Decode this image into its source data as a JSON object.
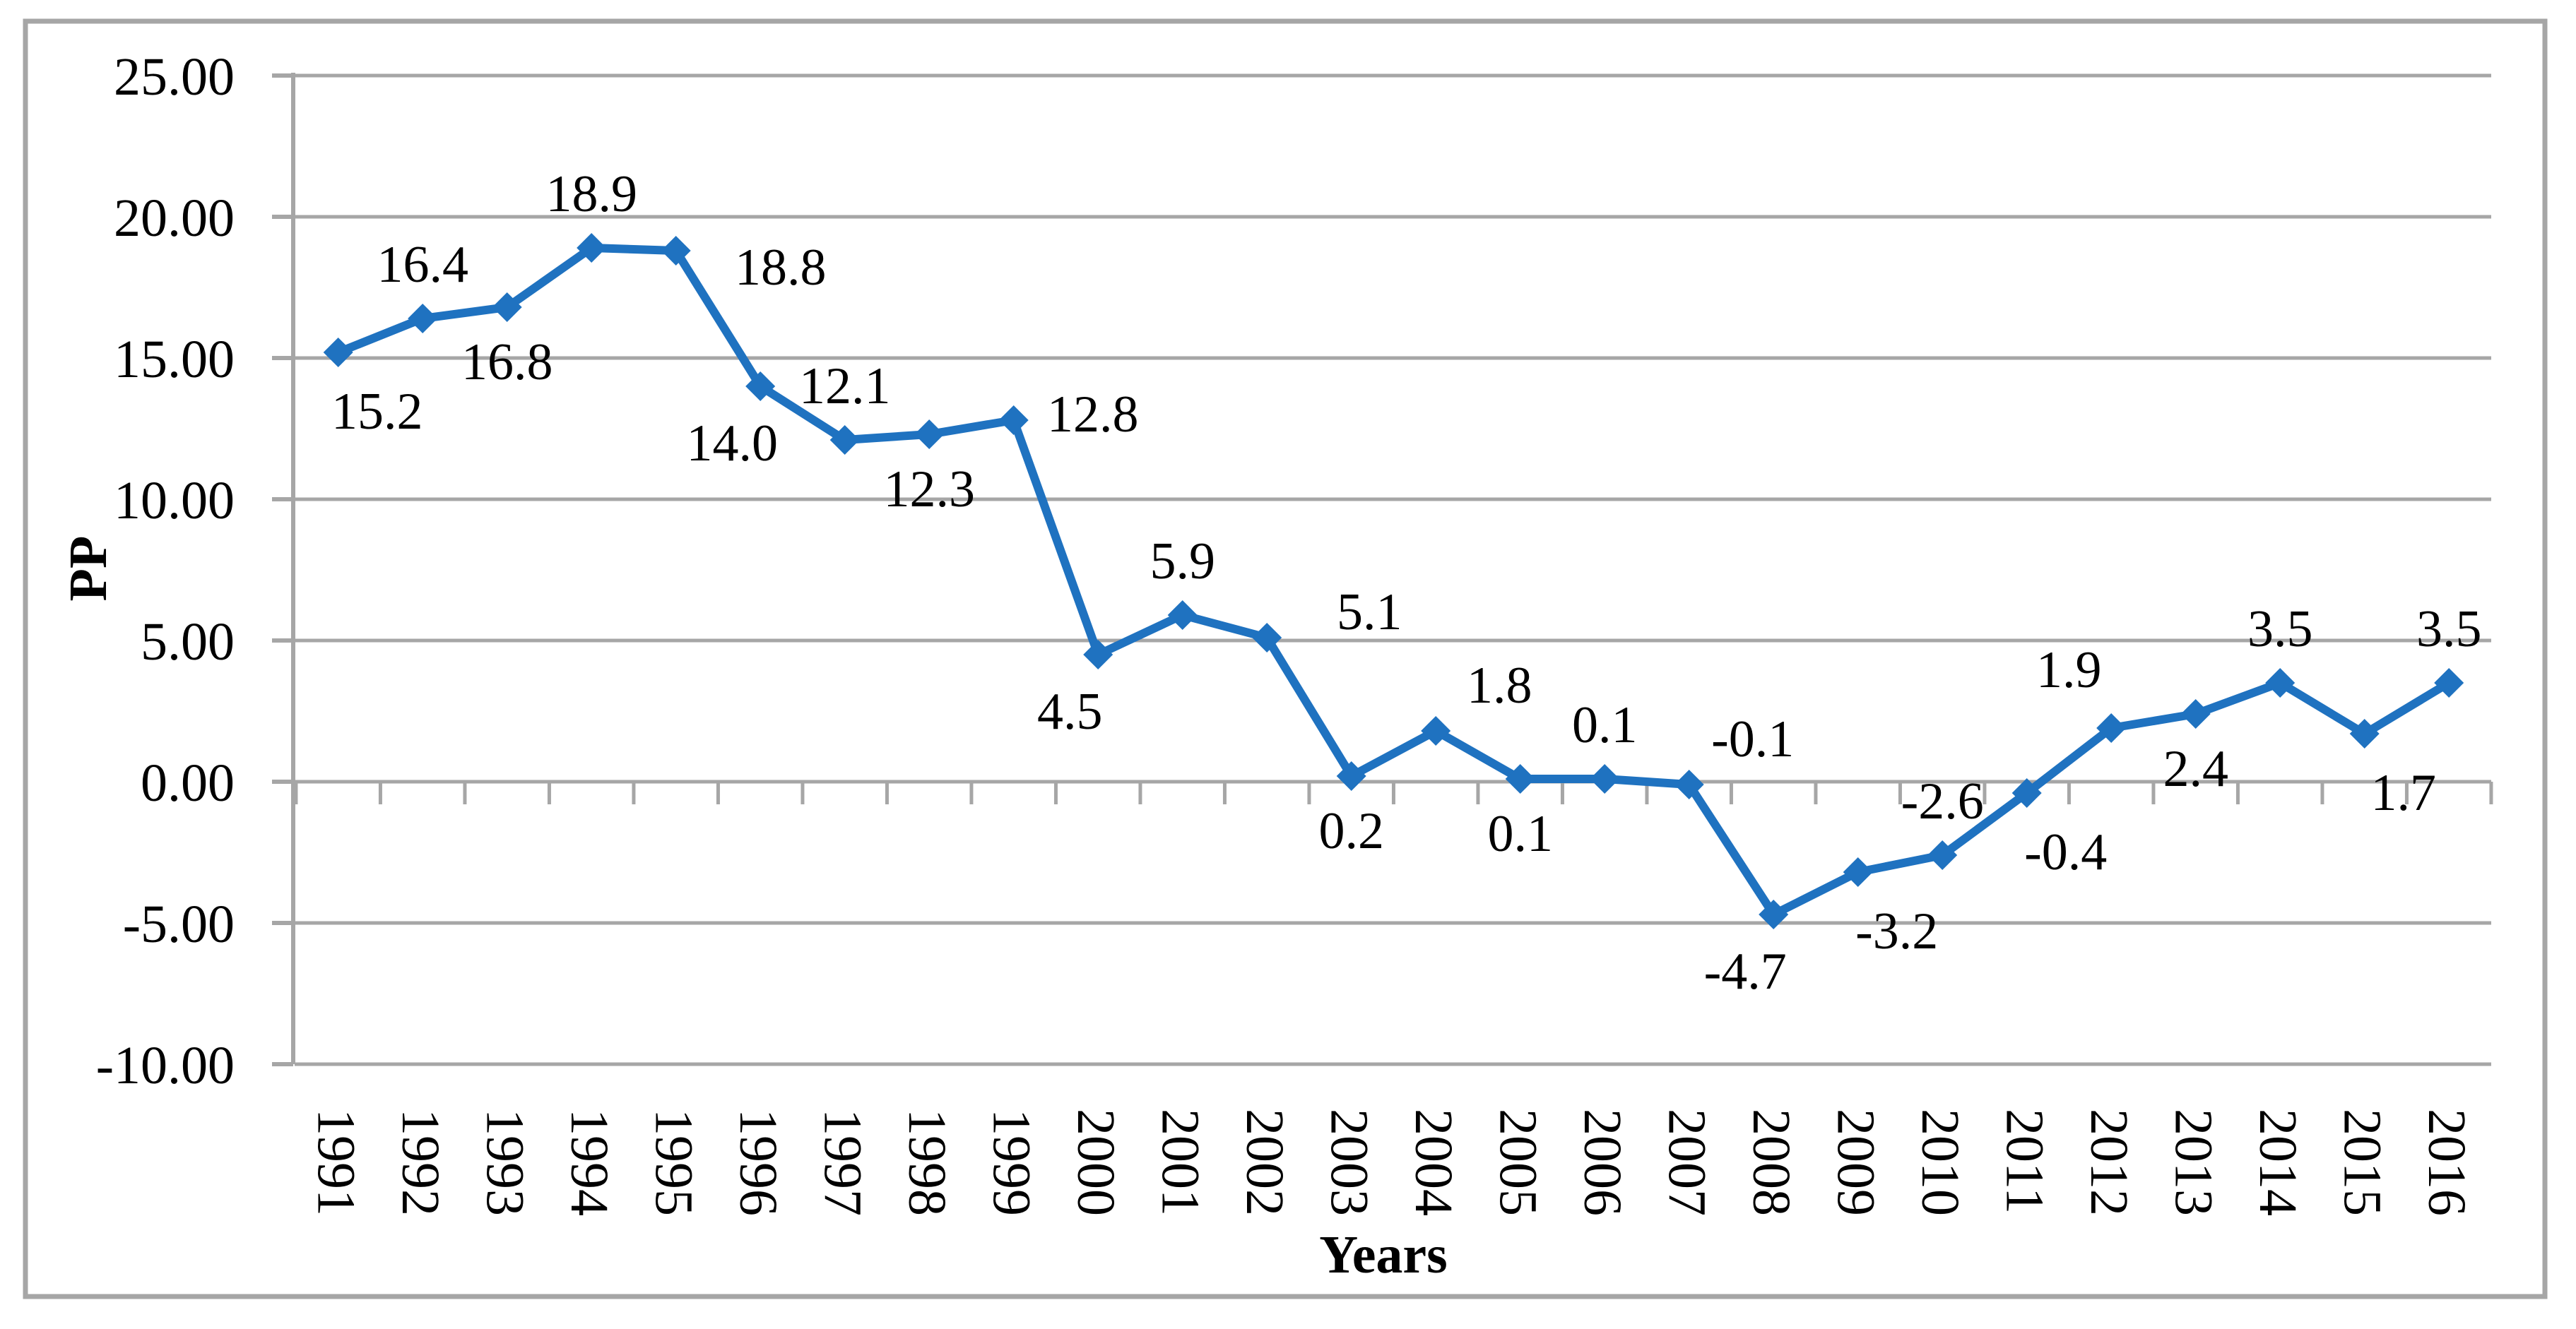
{
  "chart_data": {
    "type": "line",
    "title": "",
    "xlabel": "Years",
    "ylabel": "PP",
    "ylim": [
      -10,
      25
    ],
    "ytick_step": 5,
    "ytick_labels": [
      "25.00",
      "20.00",
      "15.00",
      "10.00",
      "5.00",
      "0.00",
      "-5.00",
      "-10.00"
    ],
    "grid": true,
    "legend_position": "none",
    "line_color": "#1F72C0",
    "gridline_color": "#A6A6A6",
    "axis_color": "#A6A6A6",
    "border_color": "#A6A6A6",
    "marker": "diamond",
    "categories": [
      "1991",
      "1992",
      "1993",
      "1994",
      "1995",
      "1996",
      "1997",
      "1998",
      "1999",
      "2000",
      "2001",
      "2002",
      "2003",
      "2004",
      "2005",
      "2006",
      "2007",
      "2008",
      "2009",
      "2010",
      "2011",
      "2012",
      "2013",
      "2014",
      "2015",
      "2016"
    ],
    "values": [
      15.2,
      16.4,
      16.8,
      18.9,
      18.8,
      14.0,
      12.1,
      12.3,
      12.8,
      4.5,
      5.9,
      5.1,
      0.2,
      1.8,
      0.1,
      0.1,
      -0.1,
      -4.7,
      -3.2,
      -2.6,
      -0.4,
      1.9,
      2.4,
      3.5,
      1.7,
      3.5
    ],
    "point_labels": [
      "15.2",
      "16.4",
      "16.8",
      "18.9",
      "18.8",
      "14.0",
      "12.1",
      "12.3",
      "12.8",
      "4.5",
      "5.9",
      "5.1",
      "0.2",
      "1.8",
      "0.1",
      "0.1",
      "-0.1",
      "-4.7",
      "-3.2",
      "-2.6",
      "-0.4",
      "1.9",
      "2.4",
      "3.5",
      "1.7",
      "3.5"
    ],
    "label_positions": [
      "below-right",
      "above",
      "below",
      "above",
      "right-below",
      "below-left",
      "above",
      "below",
      "right",
      "below-left",
      "above",
      "right-above",
      "below",
      "above-right",
      "below",
      "above",
      "above-right",
      "below-left",
      "below-right",
      "above",
      "below-right",
      "above-left",
      "below",
      "above",
      "below-right",
      "above"
    ]
  }
}
